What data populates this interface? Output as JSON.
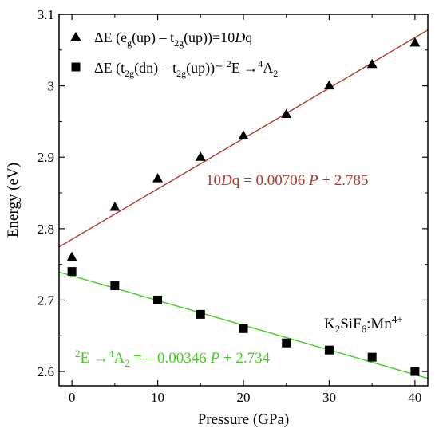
{
  "chart_data": {
    "type": "scatter",
    "xlabel": "Pressure (GPa)",
    "ylabel": "Energy (eV)",
    "xlim": [
      -1.5,
      41.5
    ],
    "ylim": [
      2.58,
      3.1
    ],
    "x_ticks": [
      0,
      10,
      20,
      30,
      40
    ],
    "y_ticks": [
      2.6,
      2.7,
      2.8,
      2.9,
      3.0,
      3.1
    ],
    "y_tick_labels": [
      "2.6",
      "2.7",
      "2.8",
      "2.9",
      "3",
      "3.1"
    ],
    "grid": false,
    "legend_position": "top-left",
    "series": [
      {
        "legend_parts": [
          "ΔE (e",
          "g",
          "(up) – t",
          "2g",
          "(up))=10",
          "D",
          "q"
        ],
        "marker": "triangle",
        "color": "#000000",
        "x": [
          0,
          5,
          10,
          15,
          20,
          25,
          30,
          35,
          40
        ],
        "y": [
          2.76,
          2.83,
          2.87,
          2.9,
          2.93,
          2.96,
          3.0,
          3.03,
          3.06
        ]
      },
      {
        "legend_parts": [
          "ΔE (t",
          "2g",
          "(dn) – t",
          "2g",
          "(up))= ",
          "2",
          "E →",
          "4",
          "A",
          "2"
        ],
        "marker": "square",
        "color": "#000000",
        "x": [
          0,
          5,
          10,
          15,
          20,
          25,
          30,
          35,
          40
        ],
        "y": [
          2.74,
          2.72,
          2.7,
          2.68,
          2.66,
          2.64,
          2.63,
          2.62,
          2.6
        ]
      }
    ],
    "fits": [
      {
        "slope": 0.00706,
        "intercept": 2.785,
        "color": "#b03a2e",
        "label_parts": [
          "10",
          "D",
          "q = 0.00706 ",
          "P",
          " + 2.785"
        ]
      },
      {
        "slope": -0.00346,
        "intercept": 2.734,
        "color": "#44cc22",
        "label_parts": [
          "2",
          "E →",
          "4",
          "A",
          "2",
          " = – 0.00346 ",
          "P",
          " + 2.734"
        ]
      }
    ],
    "annotation_parts": [
      "K",
      "2",
      "SiF",
      "6",
      ":Mn",
      "4+"
    ]
  }
}
